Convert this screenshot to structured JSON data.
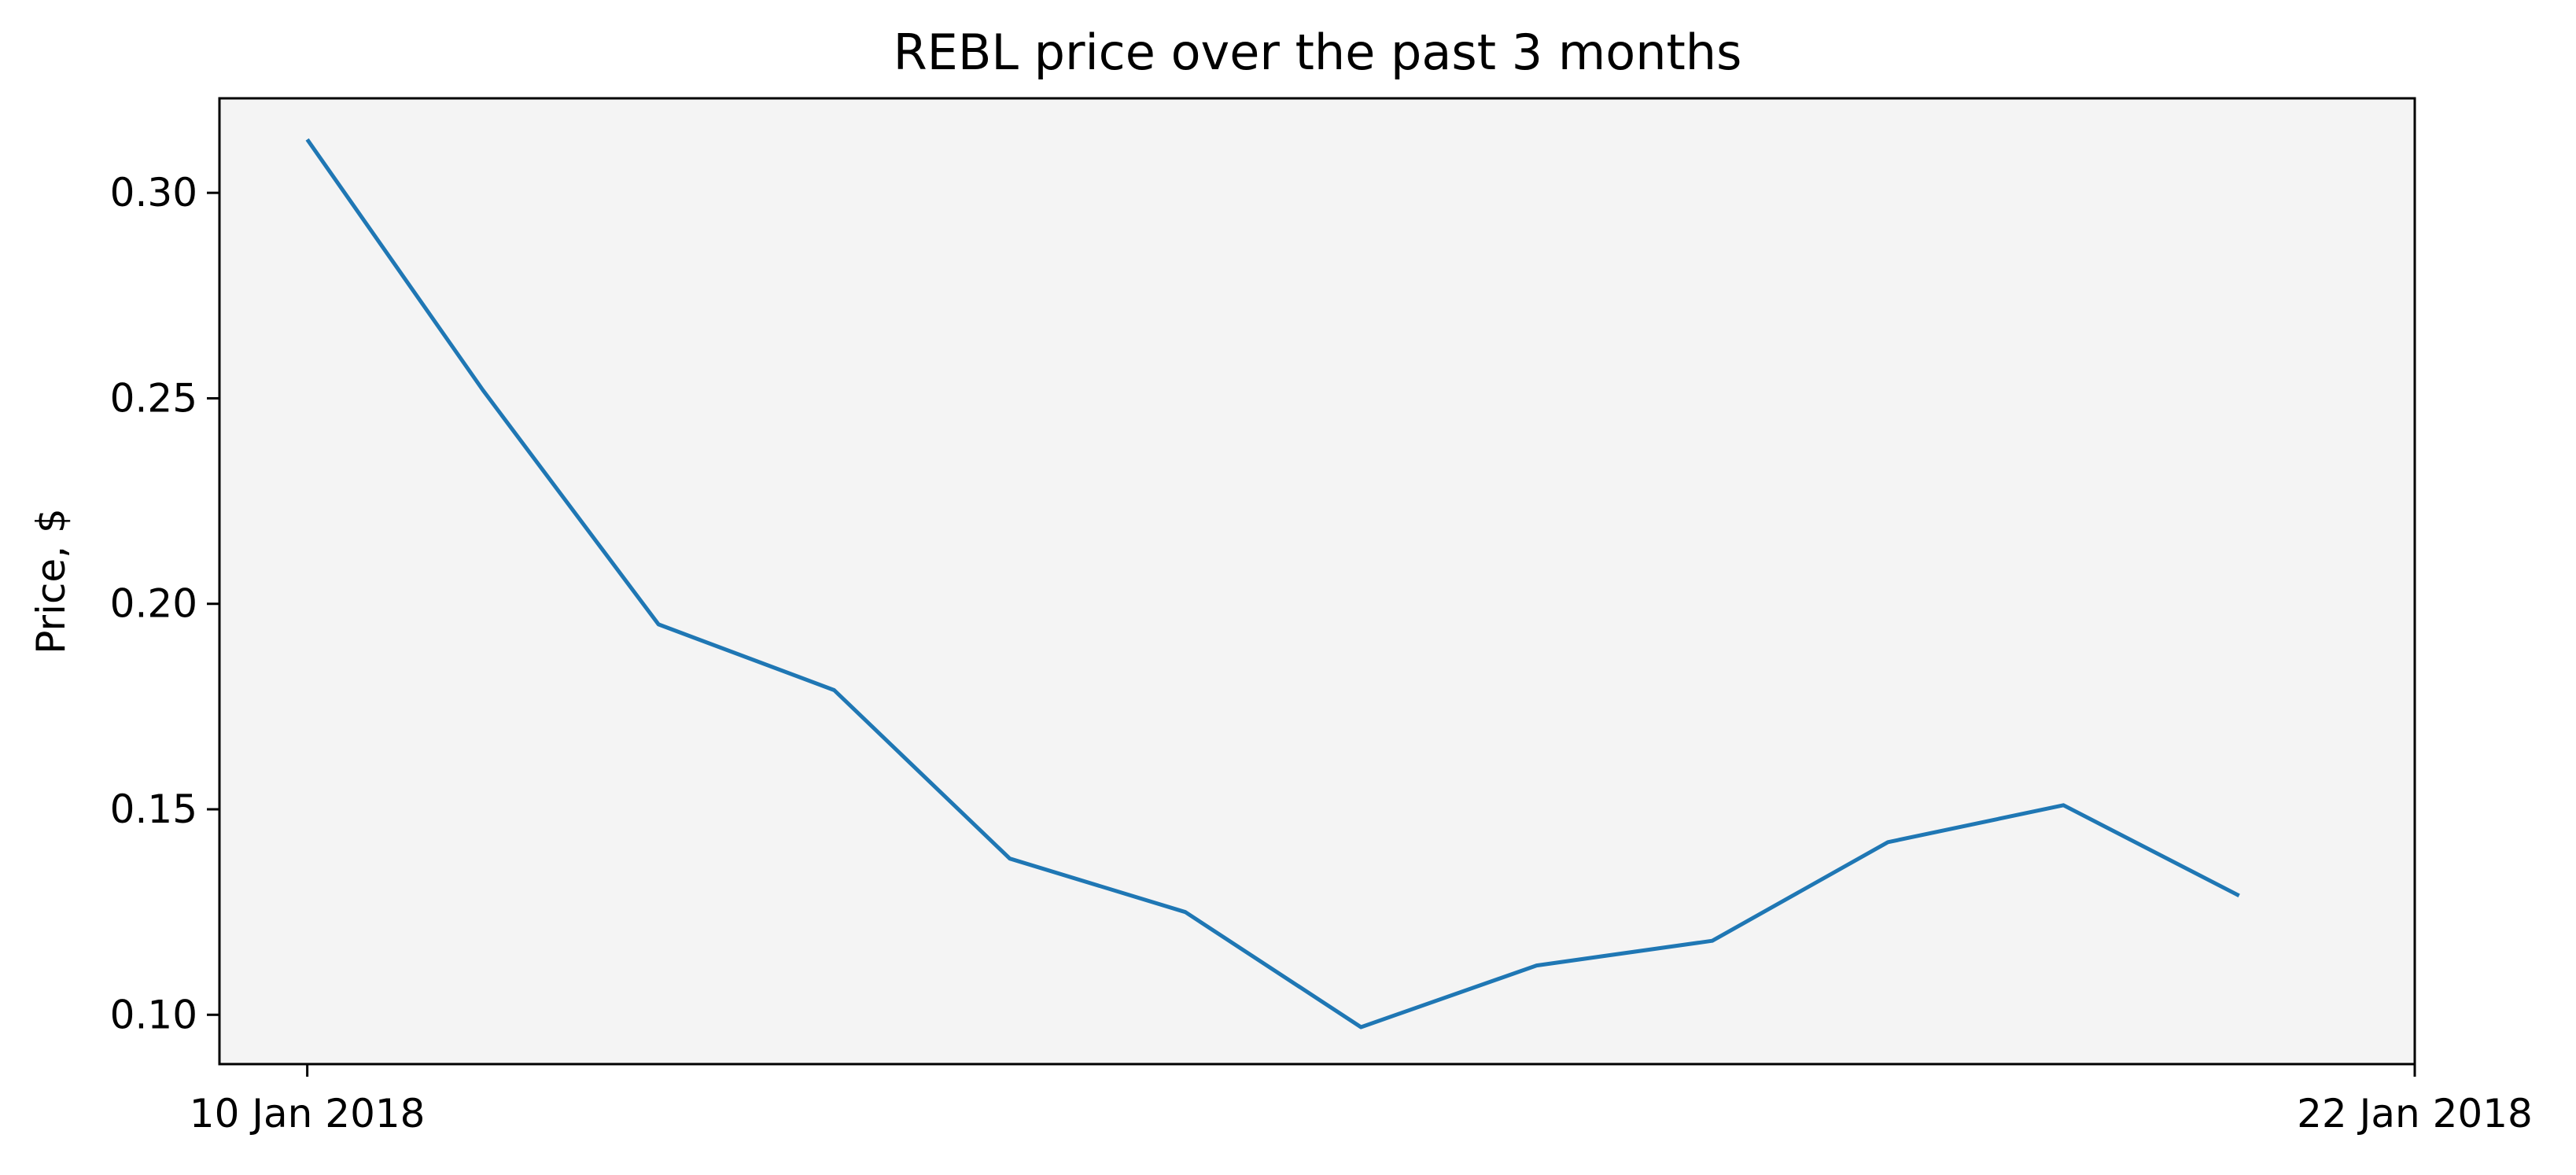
{
  "chart_data": {
    "type": "line",
    "title": "REBL price over the past 3 months",
    "xlabel": "",
    "ylabel": "Price, $",
    "x_tick_labels": [
      "10 Jan 2018",
      "22 Jan 2018"
    ],
    "x": [
      "10 Jan 2018",
      "11 Jan 2018",
      "12 Jan 2018",
      "13 Jan 2018",
      "14 Jan 2018",
      "15 Jan 2018",
      "16 Jan 2018",
      "17 Jan 2018",
      "18 Jan 2018",
      "19 Jan 2018",
      "20 Jan 2018",
      "21 Jan 2018"
    ],
    "series": [
      {
        "values": [
          0.313,
          0.252,
          0.195,
          0.179,
          0.138,
          0.125,
          0.097,
          0.112,
          0.118,
          0.142,
          0.151,
          0.129
        ]
      }
    ],
    "xlim": [
      "9.5 Jan 2018",
      "22 Jan 2018"
    ],
    "ylim": [
      0.088,
      0.323
    ],
    "y_ticks": [
      "0.10",
      "0.15",
      "0.20",
      "0.25",
      "0.30"
    ],
    "grid": false,
    "legend": "none",
    "colors": {
      "line": "#1f77b4",
      "plot_background": "#f4f4f4",
      "axes": "#000000"
    }
  }
}
